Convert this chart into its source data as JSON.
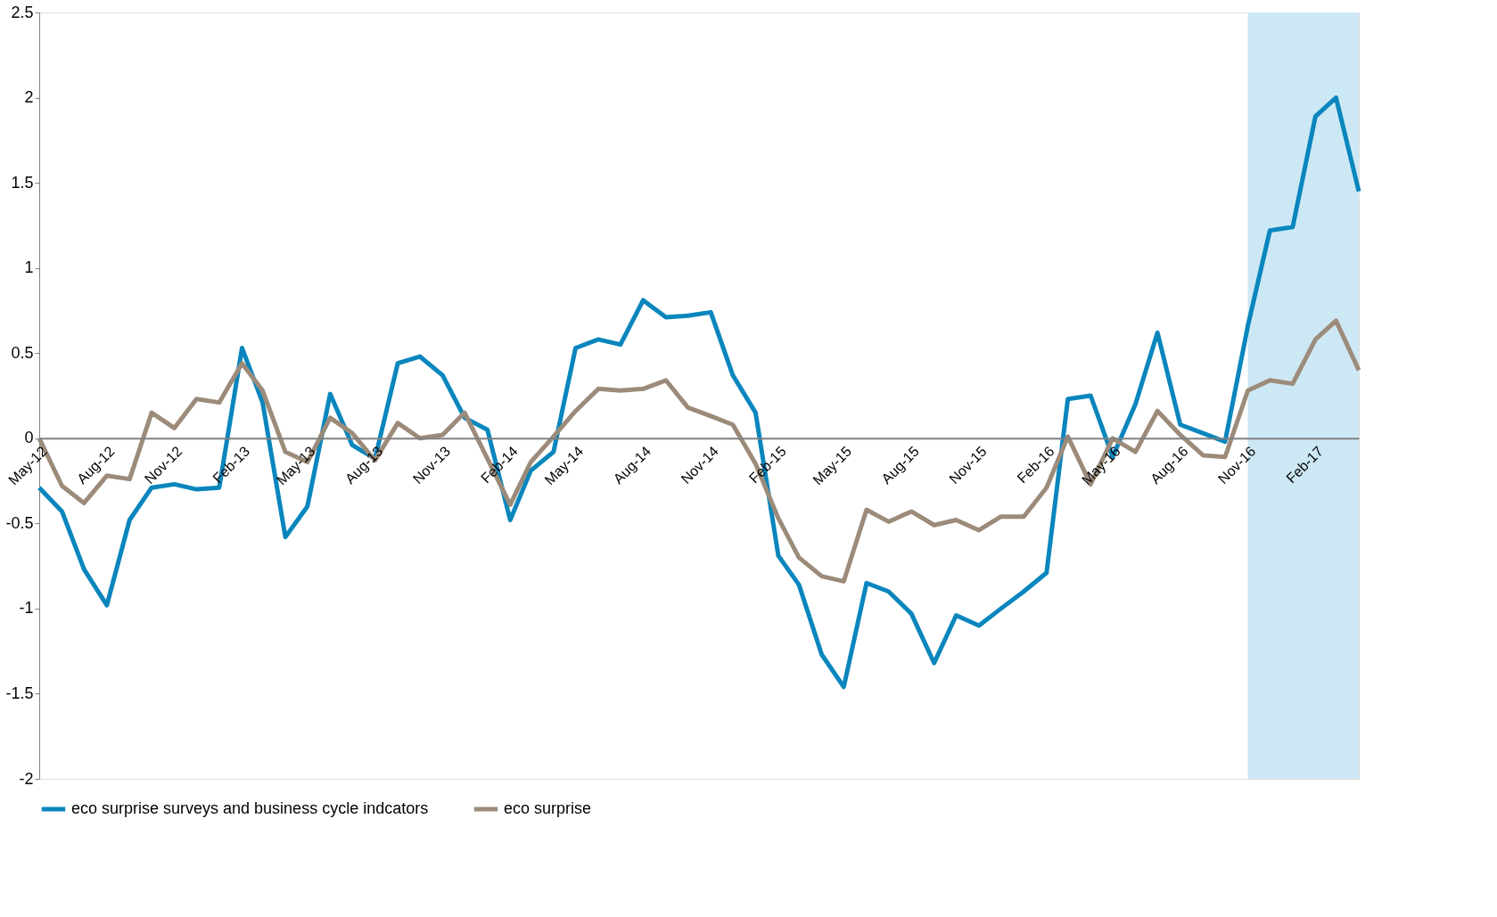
{
  "chart_data": {
    "type": "line",
    "x": [
      "2012-05",
      "2012-06",
      "2012-07",
      "2012-08",
      "2012-09",
      "2012-10",
      "2012-11",
      "2012-12",
      "2013-01",
      "2013-02",
      "2013-03",
      "2013-04",
      "2013-05",
      "2013-06",
      "2013-07",
      "2013-08",
      "2013-09",
      "2013-10",
      "2013-11",
      "2013-12",
      "2014-01",
      "2014-02",
      "2014-03",
      "2014-04",
      "2014-05",
      "2014-06",
      "2014-07",
      "2014-08",
      "2014-09",
      "2014-10",
      "2014-11",
      "2014-12",
      "2015-01",
      "2015-02",
      "2015-03",
      "2015-04",
      "2015-05",
      "2015-06",
      "2015-07",
      "2015-08",
      "2015-09",
      "2015-10",
      "2015-11",
      "2015-12",
      "2016-01",
      "2016-02",
      "2016-03",
      "2016-04",
      "2016-05",
      "2016-06",
      "2016-07",
      "2016-08",
      "2016-09",
      "2016-10",
      "2016-11",
      "2016-12",
      "2017-01",
      "2017-02",
      "2017-03",
      "2017-04"
    ],
    "series": [
      {
        "name": "eco surprise surveys and business cycle indcators",
        "color": "#0a86bd",
        "values": [
          -0.29,
          -0.43,
          -0.77,
          -0.98,
          -0.48,
          -0.29,
          -0.27,
          -0.3,
          -0.29,
          0.53,
          0.21,
          -0.58,
          -0.4,
          0.26,
          -0.04,
          -0.12,
          0.44,
          0.48,
          0.37,
          0.12,
          0.05,
          -0.48,
          -0.19,
          -0.08,
          0.53,
          0.58,
          0.55,
          0.81,
          0.71,
          0.72,
          0.74,
          0.37,
          0.15,
          -0.69,
          -0.86,
          -1.27,
          -1.46,
          -0.85,
          -0.9,
          -1.03,
          -1.32,
          -1.04,
          -1.1,
          -1.0,
          -0.9,
          -0.79,
          0.23,
          0.25,
          -0.11,
          0.2,
          0.62,
          0.08,
          0.03,
          -0.02,
          0.66,
          1.22,
          1.24,
          1.89,
          2.0,
          1.45
        ]
      },
      {
        "name": "eco surprise",
        "color": "#9c8b7a",
        "values": [
          0.0,
          -0.28,
          -0.38,
          -0.22,
          -0.24,
          0.15,
          0.06,
          0.23,
          0.21,
          0.44,
          0.28,
          -0.08,
          -0.14,
          0.12,
          0.03,
          -0.13,
          0.09,
          0.0,
          0.02,
          0.15,
          -0.12,
          -0.39,
          -0.14,
          0.01,
          0.16,
          0.29,
          0.28,
          0.29,
          0.34,
          0.18,
          0.13,
          0.08,
          -0.15,
          -0.47,
          -0.7,
          -0.81,
          -0.84,
          -0.42,
          -0.49,
          -0.43,
          -0.51,
          -0.48,
          -0.54,
          -0.46,
          -0.46,
          -0.29,
          0.01,
          -0.27,
          0.0,
          -0.08,
          0.16,
          0.02,
          -0.1,
          -0.11,
          0.28,
          0.34,
          0.32,
          0.58,
          0.69,
          0.4
        ]
      }
    ],
    "xlim": [
      "2012-05",
      "2017-04"
    ],
    "xticks": [
      {
        "value": "2012-05",
        "label": "May-12"
      },
      {
        "value": "2012-08",
        "label": "Aug-12"
      },
      {
        "value": "2012-11",
        "label": "Nov-12"
      },
      {
        "value": "2013-02",
        "label": "Feb-13"
      },
      {
        "value": "2013-05",
        "label": "May-13"
      },
      {
        "value": "2013-08",
        "label": "Aug-13"
      },
      {
        "value": "2013-11",
        "label": "Nov-13"
      },
      {
        "value": "2014-02",
        "label": "Feb-14"
      },
      {
        "value": "2014-05",
        "label": "May-14"
      },
      {
        "value": "2014-08",
        "label": "Aug-14"
      },
      {
        "value": "2014-11",
        "label": "Nov-14"
      },
      {
        "value": "2015-02",
        "label": "Feb-15"
      },
      {
        "value": "2015-05",
        "label": "May-15"
      },
      {
        "value": "2015-08",
        "label": "Aug-15"
      },
      {
        "value": "2015-11",
        "label": "Nov-15"
      },
      {
        "value": "2016-02",
        "label": "Feb-16"
      },
      {
        "value": "2016-05",
        "label": "May-16"
      },
      {
        "value": "2016-08",
        "label": "Aug-16"
      },
      {
        "value": "2016-11",
        "label": "Nov-16"
      },
      {
        "value": "2017-02",
        "label": "Feb-17"
      }
    ],
    "ylim": [
      -2,
      2.5
    ],
    "yticks": [
      -2,
      -1.5,
      -1,
      -0.5,
      0,
      0.5,
      1,
      1.5,
      2,
      2.5
    ],
    "bands": [
      {
        "axis": "x",
        "from": "2016-11",
        "to": "2017-04",
        "color": "#cde8f5"
      }
    ],
    "grid": false,
    "legend": "bottom",
    "line_style": "solid",
    "marker": "none"
  }
}
